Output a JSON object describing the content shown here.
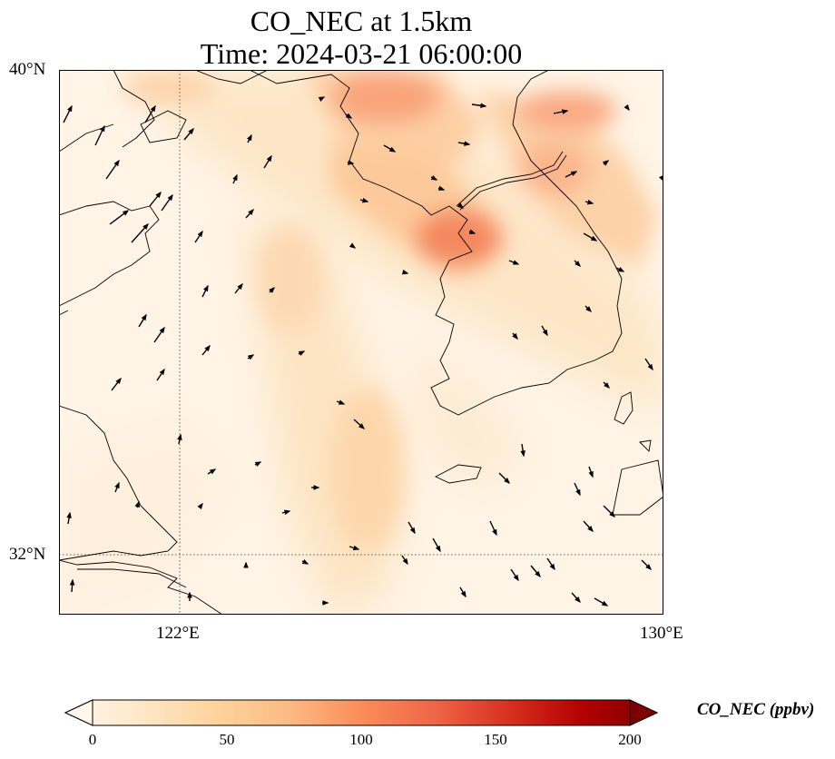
{
  "title": {
    "line1": "CO_NEC at 1.5km",
    "line2": "Time: 2024-03-21 06:00:00"
  },
  "map": {
    "variable": "CO_NEC",
    "level": "1.5km",
    "time": "2024-03-21 06:00:00",
    "lat_labels": [
      "40°N",
      "32°N"
    ],
    "lon_labels": [
      "122°E",
      "130°E"
    ],
    "gridlines": "dotted",
    "features": [
      "coastlines",
      "borders"
    ],
    "overlay": "wind vectors"
  },
  "colorbar": {
    "label": "CO_NEC (ppbv)",
    "ticks": [
      "0",
      "50",
      "100",
      "150",
      "200"
    ],
    "min": 0,
    "max": 200,
    "extend": "both",
    "colormap": "OrRd",
    "colors": [
      "#fff7ec",
      "#fee8c8",
      "#fdd49e",
      "#fdbb84",
      "#fc8d59",
      "#ef6548",
      "#d7301f",
      "#b30000",
      "#7f0000"
    ]
  }
}
